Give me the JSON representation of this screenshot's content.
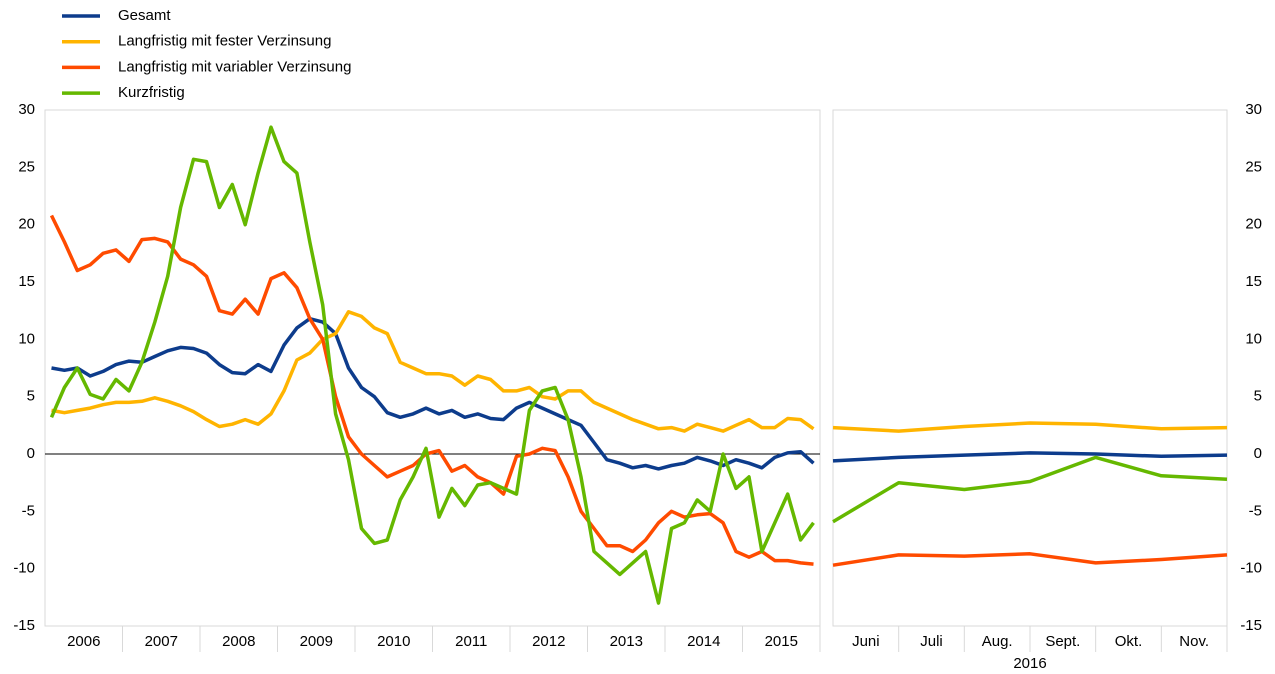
{
  "chart_data": [
    {
      "type": "line",
      "categories": [
        null,
        null,
        "2006",
        null,
        null,
        null,
        null,
        null,
        "2007",
        null,
        null,
        null,
        null,
        null,
        "2008",
        null,
        null,
        null,
        null,
        null,
        "2009",
        null,
        null,
        null,
        null,
        null,
        "2010",
        null,
        null,
        null,
        null,
        null,
        "2011",
        null,
        null,
        null,
        null,
        null,
        "2012",
        null,
        null,
        null,
        null,
        null,
        "2013",
        null,
        null,
        null,
        null,
        null,
        "2014",
        null,
        null,
        null,
        null,
        null,
        "2015",
        null,
        null,
        null
      ],
      "ylim": [
        -15,
        30
      ],
      "yticks": [
        -15,
        -10,
        -5,
        0,
        5,
        10,
        15,
        20,
        25,
        30
      ],
      "series": [
        {
          "name": "Gesamt",
          "color": "#0d3c8c",
          "values": [
            7.5,
            7.3,
            7.5,
            6.8,
            7.2,
            7.8,
            8.1,
            8.0,
            8.5,
            9.0,
            9.3,
            9.2,
            8.8,
            7.8,
            7.1,
            7.0,
            7.8,
            7.2,
            9.5,
            11.0,
            11.8,
            11.5,
            10.5,
            7.5,
            5.8,
            5.0,
            3.6,
            3.2,
            3.5,
            4.0,
            3.5,
            3.8,
            3.2,
            3.5,
            3.1,
            3.0,
            4.0,
            4.5,
            4.0,
            3.5,
            3.0,
            2.5,
            1.0,
            -0.5,
            -0.8,
            -1.2,
            -1.0,
            -1.3,
            -1.0,
            -0.8,
            -0.3,
            -0.6,
            -1.0,
            -0.5,
            -0.8,
            -1.2,
            -0.3,
            0.1,
            0.2,
            -0.8
          ]
        },
        {
          "name": "Langfristig mit fester Verzinsung",
          "color": "#ffb400",
          "values": [
            3.8,
            3.6,
            3.8,
            4.0,
            4.3,
            4.5,
            4.5,
            4.6,
            4.9,
            4.6,
            4.2,
            3.7,
            3.0,
            2.4,
            2.6,
            3.0,
            2.6,
            3.5,
            5.5,
            8.2,
            8.8,
            10.0,
            10.5,
            12.4,
            12.0,
            11.0,
            10.5,
            8.0,
            7.5,
            7.0,
            7.0,
            6.8,
            6.0,
            6.8,
            6.5,
            5.5,
            5.5,
            5.8,
            5.0,
            4.8,
            5.5,
            5.5,
            4.5,
            4.0,
            3.5,
            3.0,
            2.6,
            2.2,
            2.3,
            2.0,
            2.6,
            2.3,
            2.0,
            2.5,
            3.0,
            2.3,
            2.3,
            3.1,
            3.0,
            2.2
          ]
        },
        {
          "name": "Langfristig mit variabler Verzinsung",
          "color": "#ff4b00",
          "values": [
            20.8,
            18.5,
            16.0,
            16.5,
            17.5,
            17.8,
            16.8,
            18.7,
            18.8,
            18.5,
            17.0,
            16.5,
            15.5,
            12.5,
            12.2,
            13.5,
            12.2,
            15.3,
            15.8,
            14.5,
            11.8,
            10.0,
            5.0,
            1.5,
            0.0,
            -1.0,
            -2.0,
            -1.5,
            -1.0,
            0.0,
            0.3,
            -1.5,
            -1.0,
            -2.0,
            -2.5,
            -3.5,
            -0.2,
            0.0,
            0.5,
            0.3,
            -2.0,
            -5.0,
            -6.5,
            -8.0,
            -8.0,
            -8.5,
            -7.5,
            -6.0,
            -5.0,
            -5.5,
            -5.3,
            -5.2,
            -6.0,
            -8.5,
            -9.0,
            -8.5,
            -9.3,
            -9.3,
            -9.5,
            -9.6
          ]
        },
        {
          "name": "Kurzfristig",
          "color": "#65b800",
          "values": [
            3.2,
            5.8,
            7.5,
            5.2,
            4.8,
            6.5,
            5.5,
            8.0,
            11.5,
            15.5,
            21.5,
            25.7,
            25.5,
            21.5,
            23.5,
            20.0,
            24.5,
            28.5,
            25.5,
            24.5,
            18.5,
            13.0,
            3.5,
            -0.5,
            -6.5,
            -7.8,
            -7.5,
            -4.0,
            -2.0,
            0.5,
            -5.5,
            -3.0,
            -4.5,
            -2.7,
            -2.5,
            -3.0,
            -3.5,
            3.8,
            5.5,
            5.8,
            3.0,
            -2.0,
            -8.5,
            -9.5,
            -10.5,
            -9.5,
            -8.5,
            -13.0,
            -6.5,
            -6.0,
            -4.0,
            -5.0,
            0.0,
            -3.0,
            -2.0,
            -8.5,
            -6.0,
            -3.5,
            -7.5,
            -6.0
          ]
        }
      ]
    },
    {
      "type": "line",
      "categories": [
        null,
        "Juni",
        "Juli",
        "Aug.",
        "Sept.",
        "Okt.",
        "Nov."
      ],
      "x_label": "2016",
      "ylim": [
        -15,
        30
      ],
      "yticks": [
        -15,
        -10,
        -5,
        0,
        5,
        10,
        15,
        20,
        25,
        30
      ],
      "series": [
        {
          "color": "#0d3c8c",
          "values": [
            -0.6,
            -0.3,
            -0.1,
            0.1,
            0.0,
            -0.2,
            -0.1
          ]
        },
        {
          "color": "#ffb400",
          "values": [
            2.3,
            2.0,
            2.4,
            2.7,
            2.6,
            2.2,
            2.3
          ]
        },
        {
          "color": "#ff4b00",
          "values": [
            -9.7,
            -8.8,
            -8.9,
            -8.7,
            -9.5,
            -9.2,
            -8.8
          ]
        },
        {
          "color": "#65b800",
          "values": [
            -5.9,
            -2.5,
            -3.1,
            -2.4,
            -0.3,
            -1.9,
            -2.2
          ]
        }
      ]
    }
  ]
}
